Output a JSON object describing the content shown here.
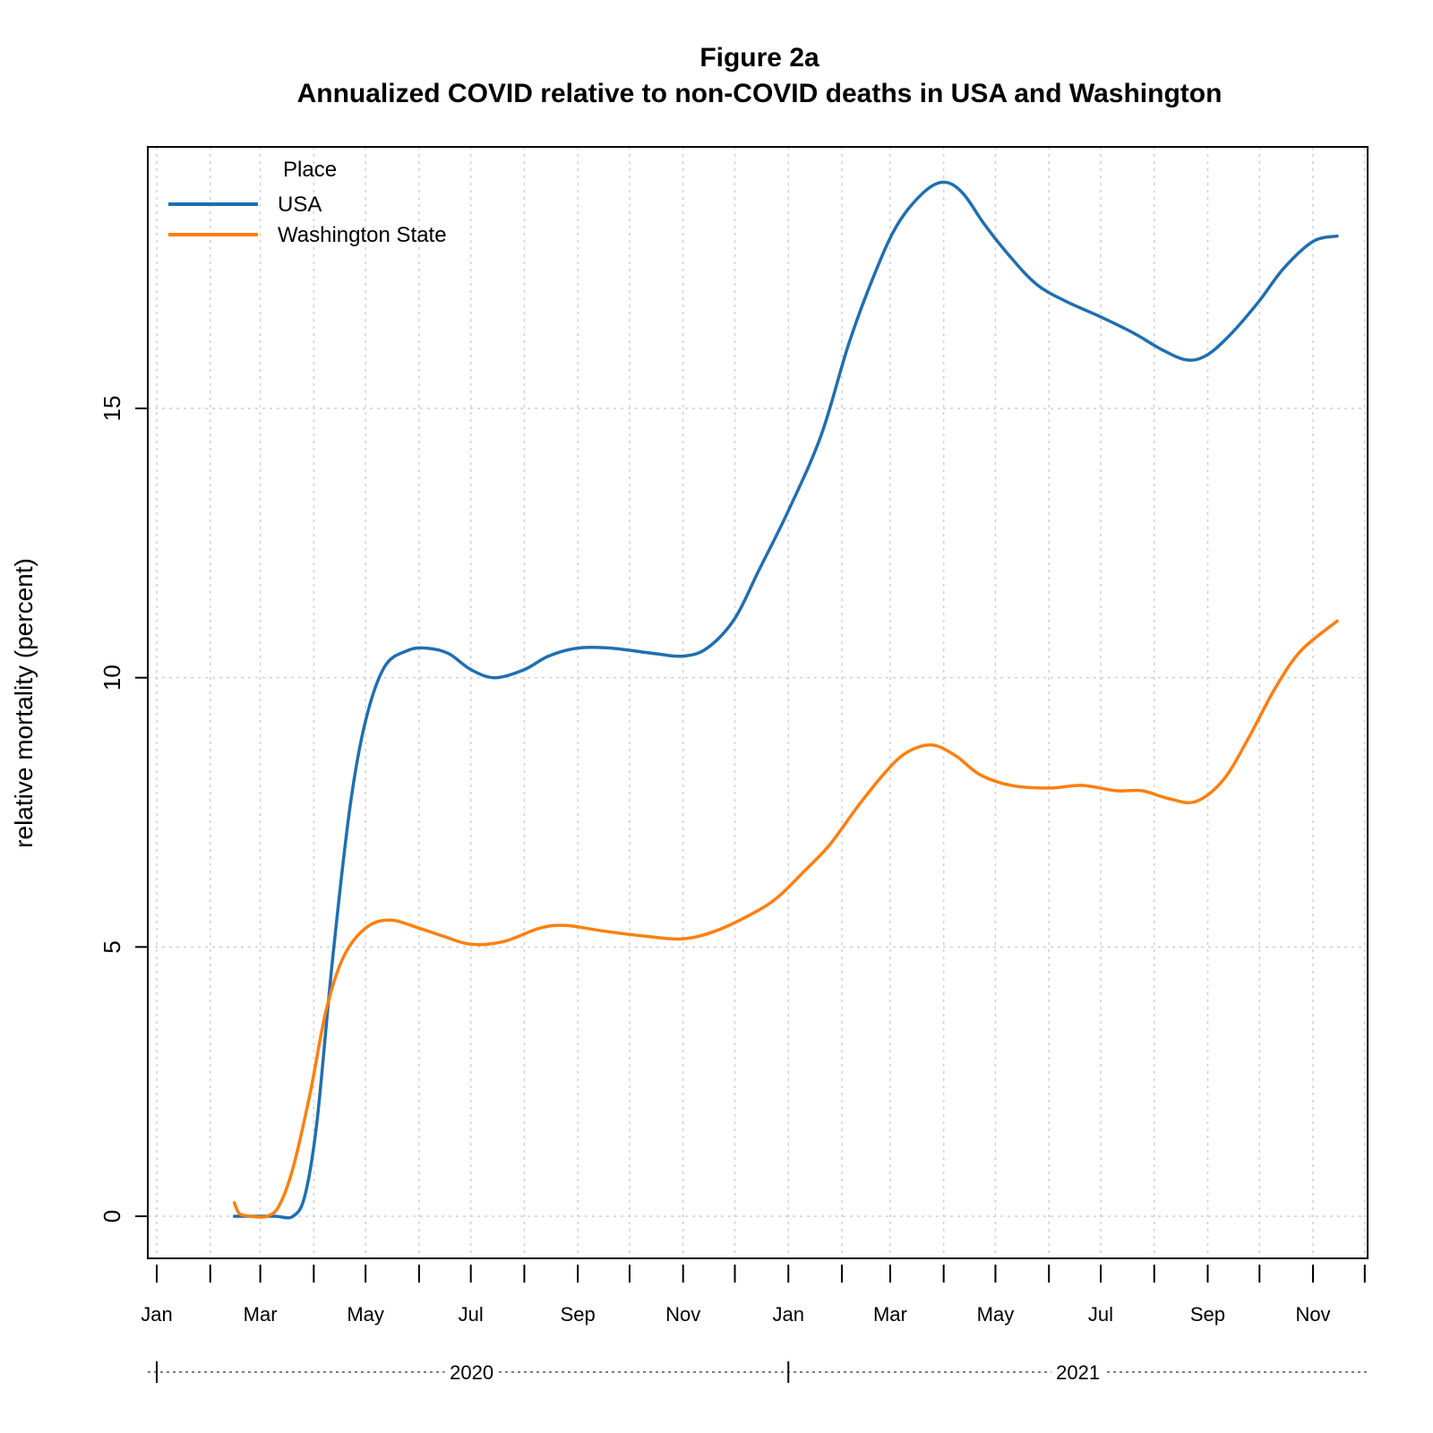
{
  "chart_data": {
    "type": "line",
    "title": "Figure 2a",
    "subtitle": "Annualized COVID relative to non-COVID deaths in USA and Washington",
    "xlabel": "",
    "ylabel": "relative mortality (percent)",
    "x_range": [
      "2020-01-01",
      "2021-12-01"
    ],
    "ylim": [
      -0.75,
      19.5
    ],
    "y_ticks": [
      0,
      5,
      10,
      15
    ],
    "x_ticks": [
      {
        "date": "2020-01-01",
        "label": "Jan"
      },
      {
        "date": "2020-03-01",
        "label": "Mar"
      },
      {
        "date": "2020-05-01",
        "label": "May"
      },
      {
        "date": "2020-07-01",
        "label": "Jul"
      },
      {
        "date": "2020-09-01",
        "label": "Sep"
      },
      {
        "date": "2020-11-01",
        "label": "Nov"
      },
      {
        "date": "2021-01-01",
        "label": "Jan"
      },
      {
        "date": "2021-03-01",
        "label": "Mar"
      },
      {
        "date": "2021-05-01",
        "label": "May"
      },
      {
        "date": "2021-07-01",
        "label": "Jul"
      },
      {
        "date": "2021-09-01",
        "label": "Sep"
      },
      {
        "date": "2021-11-01",
        "label": "Nov"
      }
    ],
    "minor_x_ticks": [
      "2020-02-01",
      "2020-04-01",
      "2020-06-01",
      "2020-08-01",
      "2020-10-01",
      "2020-12-01",
      "2021-02-01",
      "2021-04-01",
      "2021-06-01",
      "2021-08-01",
      "2021-10-01",
      "2021-12-01"
    ],
    "years": [
      {
        "label": "2020",
        "start": "2020-01-01",
        "end": "2020-12-31"
      },
      {
        "label": "2021",
        "start": "2021-01-01",
        "end": "2021-12-31"
      }
    ],
    "grid": true,
    "legend": {
      "title": "Place",
      "position": "top-left"
    },
    "series": [
      {
        "name": "USA",
        "color": "#1f6fb0",
        "points": [
          [
            "2020-02-15",
            0.0
          ],
          [
            "2020-03-01",
            0.0
          ],
          [
            "2020-03-10",
            0.0
          ],
          [
            "2020-03-20",
            0.0
          ],
          [
            "2020-03-27",
            0.4
          ],
          [
            "2020-04-03",
            1.8
          ],
          [
            "2020-04-12",
            4.8
          ],
          [
            "2020-04-22",
            7.6
          ],
          [
            "2020-05-01",
            9.2
          ],
          [
            "2020-05-12",
            10.2
          ],
          [
            "2020-05-25",
            10.5
          ],
          [
            "2020-06-05",
            10.55
          ],
          [
            "2020-06-18",
            10.45
          ],
          [
            "2020-07-01",
            10.15
          ],
          [
            "2020-07-15",
            10.0
          ],
          [
            "2020-08-01",
            10.15
          ],
          [
            "2020-08-15",
            10.4
          ],
          [
            "2020-09-01",
            10.55
          ],
          [
            "2020-09-20",
            10.55
          ],
          [
            "2020-10-15",
            10.45
          ],
          [
            "2020-11-01",
            10.4
          ],
          [
            "2020-11-15",
            10.55
          ],
          [
            "2020-12-01",
            11.1
          ],
          [
            "2020-12-15",
            12.0
          ],
          [
            "2021-01-01",
            13.1
          ],
          [
            "2021-01-20",
            14.5
          ],
          [
            "2021-02-05",
            16.2
          ],
          [
            "2021-02-20",
            17.5
          ],
          [
            "2021-03-05",
            18.4
          ],
          [
            "2021-03-20",
            19.0
          ],
          [
            "2021-04-01",
            19.2
          ],
          [
            "2021-04-12",
            19.0
          ],
          [
            "2021-04-25",
            18.4
          ],
          [
            "2021-05-10",
            17.8
          ],
          [
            "2021-05-25",
            17.3
          ],
          [
            "2021-06-10",
            17.0
          ],
          [
            "2021-07-01",
            16.7
          ],
          [
            "2021-07-20",
            16.4
          ],
          [
            "2021-08-05",
            16.1
          ],
          [
            "2021-08-20",
            15.9
          ],
          [
            "2021-09-01",
            16.0
          ],
          [
            "2021-09-15",
            16.4
          ],
          [
            "2021-10-01",
            17.0
          ],
          [
            "2021-10-15",
            17.6
          ],
          [
            "2021-11-01",
            18.1
          ],
          [
            "2021-11-15",
            18.2
          ]
        ]
      },
      {
        "name": "Washington State",
        "color": "#ff7f0e",
        "points": [
          [
            "2020-02-15",
            0.25
          ],
          [
            "2020-02-18",
            0.05
          ],
          [
            "2020-02-25",
            0.0
          ],
          [
            "2020-03-05",
            0.0
          ],
          [
            "2020-03-12",
            0.2
          ],
          [
            "2020-03-20",
            0.9
          ],
          [
            "2020-03-30",
            2.3
          ],
          [
            "2020-04-08",
            3.8
          ],
          [
            "2020-04-18",
            4.8
          ],
          [
            "2020-05-01",
            5.35
          ],
          [
            "2020-05-15",
            5.5
          ],
          [
            "2020-06-01",
            5.35
          ],
          [
            "2020-06-15",
            5.2
          ],
          [
            "2020-07-01",
            5.05
          ],
          [
            "2020-07-20",
            5.1
          ],
          [
            "2020-08-10",
            5.35
          ],
          [
            "2020-08-25",
            5.4
          ],
          [
            "2020-09-15",
            5.3
          ],
          [
            "2020-10-10",
            5.2
          ],
          [
            "2020-11-01",
            5.15
          ],
          [
            "2020-11-20",
            5.3
          ],
          [
            "2020-12-10",
            5.6
          ],
          [
            "2020-12-25",
            5.9
          ],
          [
            "2021-01-10",
            6.4
          ],
          [
            "2021-01-25",
            6.9
          ],
          [
            "2021-02-10",
            7.6
          ],
          [
            "2021-02-25",
            8.2
          ],
          [
            "2021-03-10",
            8.6
          ],
          [
            "2021-03-25",
            8.75
          ],
          [
            "2021-04-08",
            8.55
          ],
          [
            "2021-04-22",
            8.2
          ],
          [
            "2021-05-10",
            8.0
          ],
          [
            "2021-06-01",
            7.95
          ],
          [
            "2021-06-20",
            8.0
          ],
          [
            "2021-07-10",
            7.9
          ],
          [
            "2021-07-25",
            7.9
          ],
          [
            "2021-08-10",
            7.75
          ],
          [
            "2021-08-25",
            7.7
          ],
          [
            "2021-09-10",
            8.1
          ],
          [
            "2021-09-25",
            8.9
          ],
          [
            "2021-10-10",
            9.8
          ],
          [
            "2021-10-25",
            10.5
          ],
          [
            "2021-11-15",
            11.05
          ]
        ]
      }
    ]
  }
}
